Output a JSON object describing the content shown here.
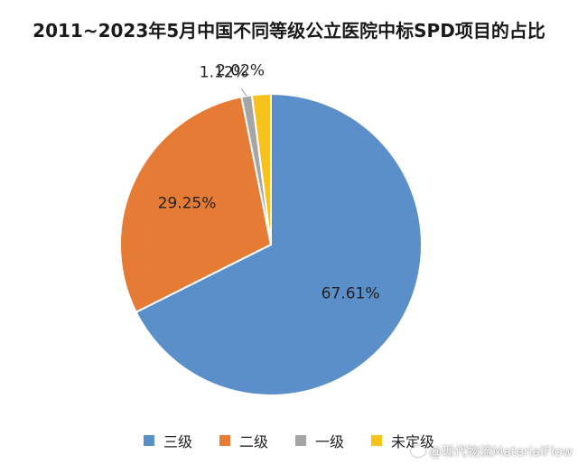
{
  "chart_data": {
    "type": "pie",
    "title": "2011~2023年5月中国不同等级公立医院中标SPD项目的占比",
    "categories": [
      "三级",
      "二级",
      "一级",
      "未定级"
    ],
    "values": [
      67.61,
      29.25,
      1.12,
      2.02
    ],
    "labels": [
      "67.61%",
      "29.25%",
      "1.12%",
      "2.02%"
    ],
    "colors": [
      "#5b8fc9",
      "#e57b35",
      "#a5a5a5",
      "#f7c21b"
    ],
    "start": "12 o'clock",
    "direction": "clockwise",
    "legend_position": "bottom"
  },
  "watermark": {
    "text": "@现代物流MaterialFlow",
    "icon": "weibo-icon"
  }
}
